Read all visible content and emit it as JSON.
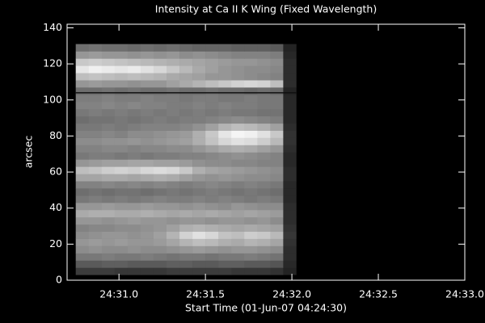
{
  "chart_data": {
    "type": "heatmap",
    "title": "Intensity at Ca II K Wing (Fixed Wavelength)",
    "x_label": "Start Time (01-Jun-07 04:24:30)",
    "y_label": "arcsec",
    "xlim": [
      30.7,
      33.0
    ],
    "ylim": [
      0,
      142
    ],
    "xticks": [
      {
        "value": 31.0,
        "label": "24:31.0"
      },
      {
        "value": 31.5,
        "label": "24:31.5"
      },
      {
        "value": 32.0,
        "label": "24:32.0"
      },
      {
        "value": 32.5,
        "label": "24:32.5"
      },
      {
        "value": 33.0,
        "label": "24:33.0"
      }
    ],
    "yticks": [
      0,
      20,
      40,
      60,
      80,
      100,
      120,
      140
    ],
    "colormap": "gray",
    "zlim": [
      0,
      255
    ],
    "hline": 104,
    "hline_color": "#111111",
    "xbins": [
      30.75,
      30.825,
      30.9,
      30.975,
      31.05,
      31.125,
      31.2,
      31.275,
      31.35,
      31.425,
      31.5,
      31.575,
      31.65,
      31.725,
      31.8,
      31.875,
      31.95,
      32.025
    ],
    "ybins": [
      3,
      7,
      11,
      15,
      19,
      23,
      27,
      31,
      35,
      39,
      43,
      47,
      51,
      55,
      59,
      63,
      67,
      71,
      75,
      79,
      83,
      87,
      91,
      95,
      99,
      103,
      107,
      111,
      115,
      119,
      123,
      127,
      131
    ],
    "z": [
      [
        60,
        60,
        60,
        55,
        55,
        55,
        55,
        60,
        60,
        60,
        60,
        60,
        55,
        55,
        55,
        50,
        35
      ],
      [
        90,
        90,
        95,
        95,
        90,
        90,
        90,
        95,
        95,
        90,
        90,
        95,
        95,
        90,
        90,
        85,
        40
      ],
      [
        120,
        120,
        125,
        120,
        120,
        125,
        120,
        115,
        120,
        120,
        115,
        120,
        120,
        125,
        120,
        115,
        45
      ],
      [
        140,
        145,
        140,
        140,
        145,
        140,
        140,
        145,
        150,
        155,
        150,
        145,
        150,
        150,
        145,
        140,
        45
      ],
      [
        150,
        155,
        150,
        155,
        150,
        150,
        155,
        165,
        180,
        190,
        185,
        175,
        170,
        180,
        175,
        165,
        50
      ],
      [
        140,
        145,
        150,
        150,
        145,
        150,
        160,
        180,
        210,
        225,
        215,
        195,
        190,
        205,
        200,
        185,
        55
      ],
      [
        130,
        135,
        135,
        140,
        140,
        145,
        150,
        160,
        175,
        180,
        175,
        170,
        165,
        170,
        165,
        160,
        50
      ],
      [
        150,
        150,
        145,
        150,
        155,
        150,
        150,
        145,
        150,
        150,
        145,
        150,
        150,
        145,
        150,
        140,
        45
      ],
      [
        170,
        175,
        175,
        170,
        170,
        175,
        170,
        165,
        170,
        165,
        170,
        165,
        160,
        165,
        160,
        155,
        45
      ],
      [
        150,
        150,
        155,
        150,
        150,
        155,
        150,
        150,
        145,
        150,
        145,
        140,
        150,
        145,
        140,
        140,
        45
      ],
      [
        120,
        125,
        120,
        125,
        120,
        125,
        130,
        125,
        125,
        130,
        125,
        130,
        125,
        120,
        125,
        120,
        40
      ],
      [
        110,
        115,
        110,
        115,
        115,
        110,
        115,
        120,
        115,
        120,
        125,
        120,
        115,
        120,
        115,
        110,
        40
      ],
      [
        130,
        130,
        135,
        130,
        135,
        130,
        135,
        130,
        125,
        130,
        135,
        130,
        125,
        130,
        125,
        120,
        40
      ],
      [
        165,
        165,
        170,
        170,
        165,
        170,
        175,
        170,
        160,
        150,
        145,
        150,
        145,
        140,
        140,
        135,
        45
      ],
      [
        190,
        195,
        205,
        210,
        205,
        215,
        220,
        215,
        200,
        175,
        165,
        160,
        155,
        150,
        145,
        140,
        45
      ],
      [
        150,
        155,
        160,
        160,
        165,
        165,
        160,
        160,
        155,
        145,
        140,
        140,
        135,
        135,
        130,
        130,
        40
      ],
      [
        120,
        125,
        125,
        120,
        125,
        120,
        125,
        125,
        130,
        130,
        135,
        140,
        145,
        140,
        135,
        130,
        40
      ],
      [
        130,
        130,
        135,
        135,
        130,
        135,
        135,
        140,
        140,
        150,
        160,
        170,
        175,
        170,
        160,
        150,
        45
      ],
      [
        140,
        140,
        145,
        145,
        150,
        145,
        150,
        155,
        160,
        175,
        195,
        215,
        225,
        220,
        205,
        185,
        50
      ],
      [
        130,
        130,
        135,
        130,
        140,
        140,
        145,
        150,
        155,
        175,
        200,
        230,
        245,
        240,
        225,
        200,
        50
      ],
      [
        120,
        120,
        125,
        120,
        125,
        130,
        130,
        130,
        135,
        145,
        160,
        180,
        190,
        185,
        175,
        160,
        45
      ],
      [
        110,
        115,
        115,
        120,
        115,
        120,
        125,
        120,
        125,
        125,
        130,
        135,
        140,
        135,
        130,
        125,
        40
      ],
      [
        120,
        125,
        120,
        125,
        120,
        125,
        120,
        125,
        120,
        125,
        120,
        125,
        120,
        120,
        115,
        115,
        40
      ],
      [
        130,
        130,
        135,
        130,
        135,
        130,
        130,
        125,
        125,
        130,
        125,
        130,
        125,
        125,
        120,
        120,
        40
      ],
      [
        125,
        125,
        130,
        125,
        125,
        130,
        125,
        125,
        120,
        125,
        125,
        120,
        120,
        125,
        120,
        120,
        40
      ],
      [
        110,
        110,
        115,
        110,
        115,
        110,
        110,
        115,
        110,
        110,
        115,
        110,
        110,
        105,
        110,
        105,
        35
      ],
      [
        150,
        155,
        150,
        150,
        145,
        150,
        150,
        160,
        170,
        180,
        190,
        200,
        210,
        215,
        210,
        190,
        45
      ],
      [
        190,
        195,
        190,
        185,
        190,
        185,
        180,
        170,
        165,
        160,
        150,
        150,
        145,
        140,
        135,
        130,
        45
      ],
      [
        230,
        240,
        235,
        230,
        235,
        225,
        215,
        200,
        185,
        170,
        160,
        150,
        145,
        140,
        140,
        135,
        45
      ],
      [
        200,
        205,
        200,
        195,
        190,
        185,
        180,
        175,
        170,
        165,
        160,
        155,
        150,
        150,
        145,
        140,
        45
      ],
      [
        150,
        155,
        150,
        150,
        145,
        150,
        145,
        150,
        140,
        145,
        140,
        135,
        130,
        130,
        130,
        125,
        40
      ],
      [
        110,
        115,
        110,
        110,
        105,
        110,
        105,
        110,
        105,
        100,
        100,
        100,
        95,
        95,
        95,
        90,
        35
      ]
    ]
  }
}
